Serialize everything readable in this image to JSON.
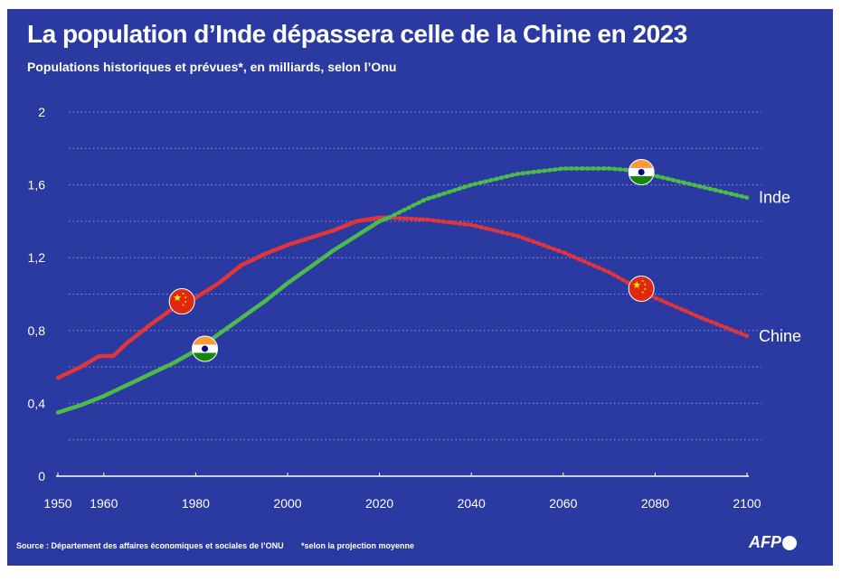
{
  "header": {
    "title": "La population d’Inde dépassera celle de la Chine en 2023",
    "subtitle": "Populations historiques et prévues*, en milliards, selon l’Onu"
  },
  "footer": {
    "source": "Source : Département des affaires économiques et sociales de l’ONU",
    "note": "*selon la projection moyenne",
    "logo": "AFP"
  },
  "colors": {
    "background": "#2b3aa0",
    "china": "#e0353b",
    "india": "#4cbb4a",
    "grid": "#8d97d6",
    "text": "#ffffff"
  },
  "icons": {
    "china_marker": "china-flag-icon",
    "india_marker": "india-flag-icon"
  },
  "chart_data": {
    "type": "line",
    "title": "La population d’Inde dépassera celle de la Chine en 2023",
    "subtitle": "Populations historiques et prévues*, en milliards, selon l’Onu",
    "xlabel": "",
    "ylabel": "",
    "xlim": [
      1950,
      2100
    ],
    "ylim": [
      0,
      2
    ],
    "x_ticks": [
      1950,
      1960,
      1980,
      2000,
      2020,
      2040,
      2060,
      2080,
      2100
    ],
    "y_ticks": [
      0,
      0.4,
      0.8,
      1.2,
      1.6,
      2
    ],
    "y_tick_labels": [
      "0",
      "0,4",
      "0,8",
      "1,2",
      "1,6",
      "2"
    ],
    "grid": "horizontal dotted",
    "historical_until": 2022,
    "series": [
      {
        "name": "Chine",
        "color": "#e0353b",
        "x": [
          1950,
          1955,
          1959,
          1962,
          1965,
          1970,
          1975,
          1980,
          1985,
          1990,
          1995,
          2000,
          2005,
          2010,
          2015,
          2020,
          2022,
          2030,
          2040,
          2050,
          2060,
          2070,
          2075,
          2080,
          2090,
          2100
        ],
        "values": [
          0.54,
          0.6,
          0.66,
          0.66,
          0.73,
          0.83,
          0.92,
          0.98,
          1.06,
          1.16,
          1.22,
          1.27,
          1.31,
          1.35,
          1.4,
          1.42,
          1.42,
          1.41,
          1.38,
          1.32,
          1.23,
          1.12,
          1.05,
          0.98,
          0.87,
          0.77
        ]
      },
      {
        "name": "Inde",
        "color": "#4cbb4a",
        "x": [
          1950,
          1955,
          1960,
          1965,
          1970,
          1975,
          1980,
          1985,
          1990,
          1995,
          2000,
          2005,
          2010,
          2015,
          2020,
          2022,
          2030,
          2040,
          2050,
          2060,
          2070,
          2075,
          2080,
          2090,
          2100
        ],
        "values": [
          0.35,
          0.39,
          0.44,
          0.5,
          0.56,
          0.62,
          0.69,
          0.78,
          0.87,
          0.96,
          1.06,
          1.15,
          1.24,
          1.32,
          1.4,
          1.42,
          1.52,
          1.6,
          1.66,
          1.69,
          1.69,
          1.68,
          1.65,
          1.59,
          1.53
        ]
      }
    ],
    "markers": [
      {
        "series": "Chine",
        "x": 1977,
        "y": 0.96,
        "icon": "china-flag-icon"
      },
      {
        "series": "Inde",
        "x": 1982,
        "y": 0.7,
        "icon": "india-flag-icon"
      },
      {
        "series": "Inde",
        "x": 2077,
        "y": 1.67,
        "icon": "india-flag-icon"
      },
      {
        "series": "Chine",
        "x": 2077,
        "y": 1.03,
        "icon": "china-flag-icon"
      }
    ]
  }
}
